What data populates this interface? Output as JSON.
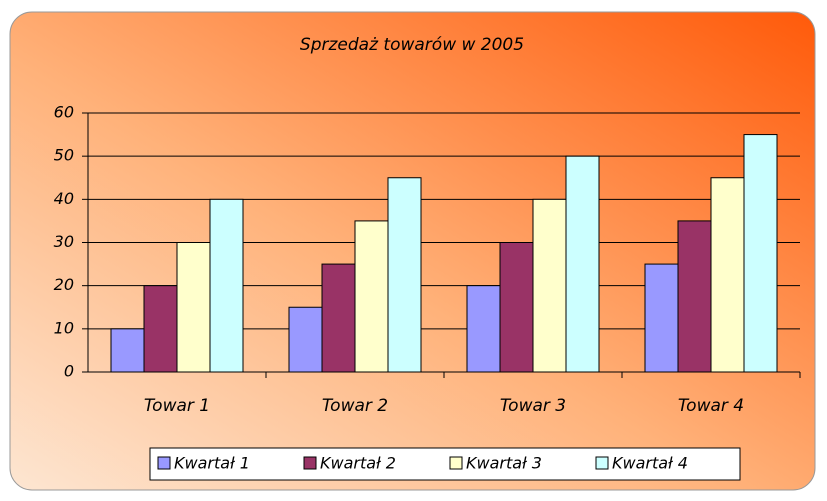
{
  "chart_data": {
    "type": "bar",
    "title": "Sprzedaż towarów w 2005",
    "categories": [
      "Towar 1",
      "Towar 2",
      "Towar 3",
      "Towar 4"
    ],
    "series": [
      {
        "name": "Kwartał 1",
        "color": "#9999ff",
        "values": [
          10,
          15,
          20,
          25
        ]
      },
      {
        "name": "Kwartał 2",
        "color": "#993366",
        "values": [
          20,
          25,
          30,
          35
        ]
      },
      {
        "name": "Kwartał 3",
        "color": "#ffffcc",
        "values": [
          30,
          35,
          40,
          45
        ]
      },
      {
        "name": "Kwartał 4",
        "color": "#ccffff",
        "values": [
          40,
          45,
          50,
          55
        ]
      }
    ],
    "ylim": [
      0,
      60
    ],
    "yticks": [
      0,
      10,
      20,
      30,
      40,
      50,
      60
    ],
    "grid": true,
    "legend": "bottom"
  }
}
